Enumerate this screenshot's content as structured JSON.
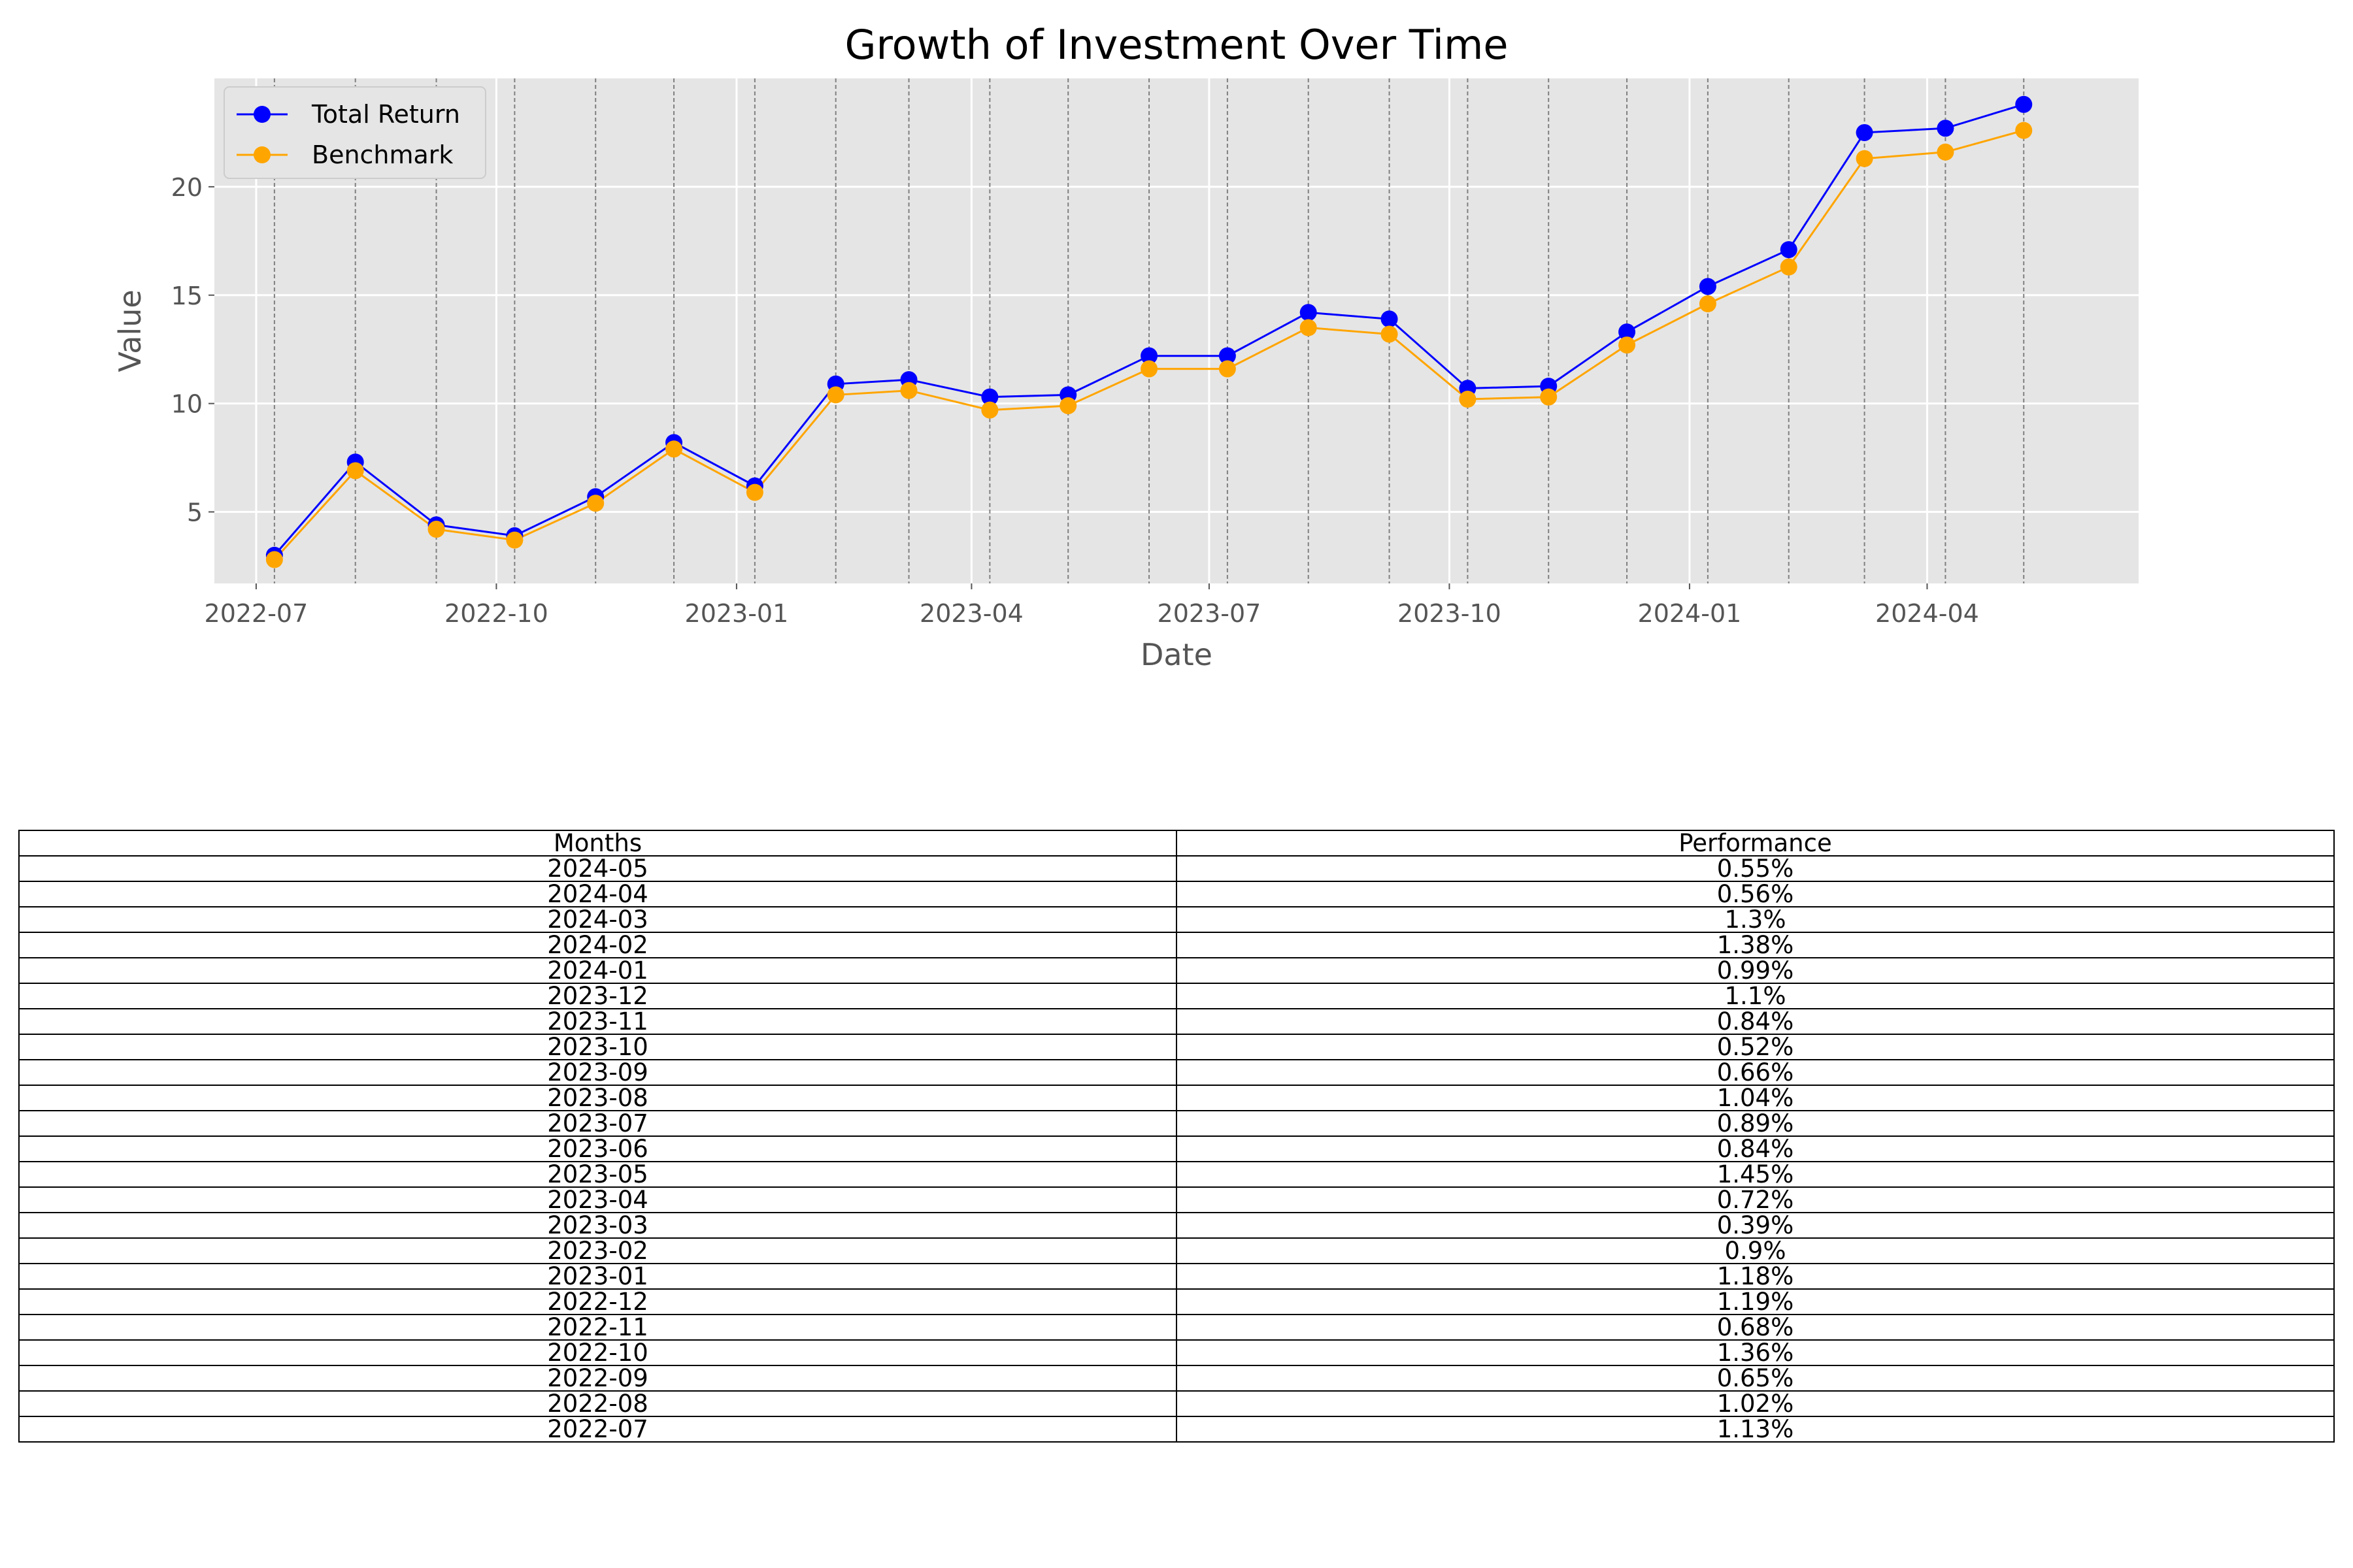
{
  "chart_data": {
    "type": "line",
    "title": "Growth of Investment Over Time",
    "xlabel": "Date",
    "ylabel": "Value",
    "x": [
      "2022-07-08",
      "2022-08-08",
      "2022-09-08",
      "2022-10-08",
      "2022-11-08",
      "2022-12-08",
      "2023-01-08",
      "2023-02-08",
      "2023-03-08",
      "2023-04-08",
      "2023-05-08",
      "2023-06-08",
      "2023-07-08",
      "2023-08-08",
      "2023-09-08",
      "2023-10-08",
      "2023-11-08",
      "2023-12-08",
      "2024-01-08",
      "2024-02-08",
      "2024-03-08",
      "2024-04-08",
      "2024-05-08"
    ],
    "series": [
      {
        "name": "Total Return",
        "color": "#0000ff",
        "values": [
          3.0,
          7.3,
          4.4,
          3.9,
          5.7,
          8.2,
          6.2,
          10.9,
          11.1,
          10.3,
          10.4,
          12.2,
          12.2,
          14.2,
          13.9,
          10.7,
          10.8,
          13.3,
          15.4,
          17.1,
          22.5,
          22.7,
          23.8
        ]
      },
      {
        "name": "Benchmark",
        "color": "#ffa500",
        "values": [
          2.8,
          6.9,
          4.2,
          3.7,
          5.4,
          7.9,
          5.9,
          10.4,
          10.6,
          9.7,
          9.9,
          11.6,
          11.6,
          13.5,
          13.2,
          10.2,
          10.3,
          12.7,
          14.6,
          16.3,
          21.3,
          21.6,
          22.6
        ]
      }
    ],
    "x_ticks": [
      "2022-07",
      "2022-10",
      "2023-01",
      "2023-04",
      "2023-07",
      "2023-10",
      "2024-01",
      "2024-04"
    ],
    "y_ticks": [
      5,
      10,
      15,
      20
    ],
    "ylim": [
      1.7,
      25.0
    ],
    "xlim": [
      "2022-06-15",
      "2024-06-21"
    ],
    "grid": true,
    "vertical_lines": "dashed gray at each data date",
    "legend_position": "upper-left",
    "style": "ggplot"
  },
  "table": {
    "headers": [
      "Months",
      "Performance"
    ],
    "rows": [
      [
        "2024-05",
        "0.55%"
      ],
      [
        "2024-04",
        "0.56%"
      ],
      [
        "2024-03",
        "1.3%"
      ],
      [
        "2024-02",
        "1.38%"
      ],
      [
        "2024-01",
        "0.99%"
      ],
      [
        "2023-12",
        "1.1%"
      ],
      [
        "2023-11",
        "0.84%"
      ],
      [
        "2023-10",
        "0.52%"
      ],
      [
        "2023-09",
        "0.66%"
      ],
      [
        "2023-08",
        "1.04%"
      ],
      [
        "2023-07",
        "0.89%"
      ],
      [
        "2023-06",
        "0.84%"
      ],
      [
        "2023-05",
        "1.45%"
      ],
      [
        "2023-04",
        "0.72%"
      ],
      [
        "2023-03",
        "0.39%"
      ],
      [
        "2023-02",
        "0.9%"
      ],
      [
        "2023-01",
        "1.18%"
      ],
      [
        "2022-12",
        "1.19%"
      ],
      [
        "2022-11",
        "0.68%"
      ],
      [
        "2022-10",
        "1.36%"
      ],
      [
        "2022-09",
        "0.65%"
      ],
      [
        "2022-08",
        "1.02%"
      ],
      [
        "2022-07",
        "1.13%"
      ]
    ]
  }
}
